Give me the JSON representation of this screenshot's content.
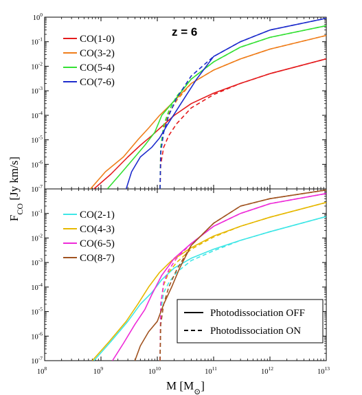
{
  "chart_data": [
    {
      "panel": "top",
      "type": "line",
      "annotation": "z = 6",
      "x_scale": "log",
      "y_scale": "log",
      "xlim": [
        100000000.0,
        10000000000000.0
      ],
      "ylim": [
        1e-07,
        1
      ],
      "grid": false,
      "legend_position": "top-left",
      "series": [
        {
          "name": "CO(1-0)",
          "color": "#e41a1c",
          "off": [
            [
              750000000.0,
              1e-07
            ],
            [
              1500000000.0,
              4e-07
            ],
            [
              3000000000.0,
              2e-06
            ],
            [
              5000000000.0,
              6e-06
            ],
            [
              8000000000.0,
              1.5e-05
            ],
            [
              12000000000.0,
              3.5e-05
            ],
            [
              20000000000.0,
              0.0001
            ],
            [
              40000000000.0,
              0.0003
            ],
            [
              100000000000.0,
              0.0008
            ],
            [
              300000000000.0,
              0.002
            ],
            [
              1000000000000.0,
              0.005
            ],
            [
              10000000000000.0,
              0.02
            ]
          ],
          "on": [
            [
              11200000000.0,
              1e-07
            ],
            [
              11500000000.0,
              1e-06
            ],
            [
              13000000000.0,
              5e-06
            ],
            [
              16000000000.0,
              1.5e-05
            ],
            [
              22000000000.0,
              4.5e-05
            ],
            [
              40000000000.0,
              0.0002
            ],
            [
              100000000000.0,
              0.0007
            ],
            [
              300000000000.0,
              0.002
            ],
            [
              1000000000000.0,
              0.005
            ],
            [
              10000000000000.0,
              0.02
            ]
          ]
        },
        {
          "name": "CO(3-2)",
          "color": "#ef7d1a",
          "off": [
            [
              650000000.0,
              1e-07
            ],
            [
              1200000000.0,
              5e-07
            ],
            [
              2500000000.0,
              2e-06
            ],
            [
              4500000000.0,
              1e-05
            ],
            [
              7000000000.0,
              3e-05
            ],
            [
              11000000000.0,
              0.0001
            ],
            [
              18000000000.0,
              0.0003
            ],
            [
              40000000000.0,
              0.002
            ],
            [
              100000000000.0,
              0.007
            ],
            [
              300000000000.0,
              0.02
            ],
            [
              1000000000000.0,
              0.05
            ],
            [
              10000000000000.0,
              0.18
            ]
          ],
          "on": [
            [
              11200000000.0,
              1e-07
            ],
            [
              11500000000.0,
              5e-06
            ],
            [
              13000000000.0,
              3e-05
            ],
            [
              16000000000.0,
              0.00012
            ],
            [
              22000000000.0,
              0.0004
            ],
            [
              40000000000.0,
              0.002
            ],
            [
              100000000000.0,
              0.007
            ],
            [
              300000000000.0,
              0.02
            ],
            [
              1000000000000.0,
              0.05
            ],
            [
              10000000000000.0,
              0.18
            ]
          ]
        },
        {
          "name": "CO(5-4)",
          "color": "#33e033",
          "off": [
            [
              1300000000.0,
              1e-07
            ],
            [
              2200000000.0,
              4e-07
            ],
            [
              4000000000.0,
              2e-06
            ],
            [
              6000000000.0,
              6e-06
            ],
            [
              9000000000.0,
              2e-05
            ],
            [
              12000000000.0,
              0.0001
            ],
            [
              20000000000.0,
              0.0004
            ],
            [
              40000000000.0,
              0.003
            ],
            [
              100000000000.0,
              0.015
            ],
            [
              300000000000.0,
              0.06
            ],
            [
              1000000000000.0,
              0.15
            ],
            [
              10000000000000.0,
              0.45
            ]
          ],
          "on": [
            [
              11200000000.0,
              1e-07
            ],
            [
              11500000000.0,
              5e-06
            ],
            [
              13000000000.0,
              4e-05
            ],
            [
              16000000000.0,
              0.00015
            ],
            [
              22000000000.0,
              0.0006
            ],
            [
              40000000000.0,
              0.003
            ],
            [
              100000000000.0,
              0.015
            ],
            [
              300000000000.0,
              0.06
            ],
            [
              1000000000000.0,
              0.15
            ],
            [
              10000000000000.0,
              0.45
            ]
          ]
        },
        {
          "name": "CO(7-6)",
          "color": "#1c2bcc",
          "off": [
            [
              2800000000.0,
              1e-07
            ],
            [
              3500000000.0,
              5e-07
            ],
            [
              5000000000.0,
              2e-06
            ],
            [
              8000000000.0,
              5e-06
            ],
            [
              11000000000.0,
              1.2e-05
            ],
            [
              15000000000.0,
              4e-05
            ],
            [
              25000000000.0,
              0.00025
            ],
            [
              50000000000.0,
              0.003
            ],
            [
              100000000000.0,
              0.025
            ],
            [
              300000000000.0,
              0.1
            ],
            [
              1000000000000.0,
              0.3
            ],
            [
              10000000000000.0,
              0.9
            ]
          ],
          "on": [
            [
              11200000000.0,
              1e-07
            ],
            [
              11500000000.0,
              3e-06
            ],
            [
              13000000000.0,
              2e-05
            ],
            [
              16000000000.0,
              0.0001
            ],
            [
              22000000000.0,
              0.0005
            ],
            [
              40000000000.0,
              0.004
            ],
            [
              100000000000.0,
              0.025
            ],
            [
              300000000000.0,
              0.1
            ],
            [
              1000000000000.0,
              0.3
            ],
            [
              10000000000000.0,
              0.9
            ]
          ]
        }
      ]
    },
    {
      "panel": "bottom",
      "type": "line",
      "x_scale": "log",
      "y_scale": "log",
      "xlim": [
        100000000.0,
        10000000000000.0
      ],
      "ylim": [
        1e-07,
        1
      ],
      "xlabel": "M [M⊙]",
      "xticklabels": [
        "10^8",
        "10^9",
        "10^10",
        "10^11",
        "10^12",
        "10^13"
      ],
      "grid": false,
      "legend_position": "top-left",
      "linestyle_legend": [
        {
          "label": "Photodissociation OFF",
          "style": "solid"
        },
        {
          "label": "Photodissociation ON",
          "style": "dashed"
        }
      ],
      "series": [
        {
          "name": "CO(2-1)",
          "color": "#3ee6e6",
          "off": [
            [
              750000000.0,
              1e-07
            ],
            [
              1500000000.0,
              6e-07
            ],
            [
              3000000000.0,
              4e-06
            ],
            [
              5000000000.0,
              2e-05
            ],
            [
              8000000000.0,
              6e-05
            ],
            [
              12000000000.0,
              0.0002
            ],
            [
              20000000000.0,
              0.0006
            ],
            [
              40000000000.0,
              0.0015
            ],
            [
              100000000000.0,
              0.0035
            ],
            [
              300000000000.0,
              0.008
            ],
            [
              1000000000000.0,
              0.018
            ],
            [
              10000000000000.0,
              0.075
            ]
          ],
          "on": [
            [
              11200000000.0,
              1e-07
            ],
            [
              11500000000.0,
              1e-05
            ],
            [
              13000000000.0,
              6e-05
            ],
            [
              16000000000.0,
              0.00015
            ],
            [
              22000000000.0,
              0.0004
            ],
            [
              40000000000.0,
              0.0012
            ],
            [
              100000000000.0,
              0.003
            ],
            [
              300000000000.0,
              0.008
            ],
            [
              1000000000000.0,
              0.018
            ],
            [
              10000000000000.0,
              0.075
            ]
          ]
        },
        {
          "name": "CO(4-3)",
          "color": "#e6b800",
          "off": [
            [
              700000000.0,
              1e-07
            ],
            [
              1400000000.0,
              6e-07
            ],
            [
              2800000000.0,
              4e-06
            ],
            [
              4500000000.0,
              2e-05
            ],
            [
              7000000000.0,
              0.0001
            ],
            [
              11000000000.0,
              0.0004
            ],
            [
              18000000000.0,
              0.0012
            ],
            [
              40000000000.0,
              0.004
            ],
            [
              100000000000.0,
              0.012
            ],
            [
              300000000000.0,
              0.03
            ],
            [
              1000000000000.0,
              0.07
            ],
            [
              10000000000000.0,
              0.28
            ]
          ],
          "on": [
            [
              11200000000.0,
              1e-07
            ],
            [
              11500000000.0,
              2e-05
            ],
            [
              13000000000.0,
              0.00012
            ],
            [
              16000000000.0,
              0.0004
            ],
            [
              22000000000.0,
              0.001
            ],
            [
              40000000000.0,
              0.0035
            ],
            [
              100000000000.0,
              0.011
            ],
            [
              300000000000.0,
              0.03
            ],
            [
              1000000000000.0,
              0.07
            ],
            [
              10000000000000.0,
              0.28
            ]
          ]
        },
        {
          "name": "CO(6-5)",
          "color": "#ee2ad8",
          "off": [
            [
              1600000000.0,
              1e-07
            ],
            [
              2500000000.0,
              5e-07
            ],
            [
              4000000000.0,
              3e-06
            ],
            [
              6000000000.0,
              1.2e-05
            ],
            [
              8000000000.0,
              5e-05
            ],
            [
              12000000000.0,
              0.0003
            ],
            [
              20000000000.0,
              0.0015
            ],
            [
              40000000000.0,
              0.006
            ],
            [
              100000000000.0,
              0.03
            ],
            [
              300000000000.0,
              0.1
            ],
            [
              1000000000000.0,
              0.25
            ],
            [
              10000000000000.0,
              0.65
            ]
          ],
          "on": [
            [
              11200000000.0,
              1e-07
            ],
            [
              11500000000.0,
              2e-05
            ],
            [
              13000000000.0,
              0.00015
            ],
            [
              16000000000.0,
              0.0005
            ],
            [
              22000000000.0,
              0.0015
            ],
            [
              40000000000.0,
              0.006
            ],
            [
              100000000000.0,
              0.03
            ],
            [
              300000000000.0,
              0.1
            ],
            [
              1000000000000.0,
              0.25
            ],
            [
              10000000000000.0,
              0.65
            ]
          ]
        },
        {
          "name": "CO(8-7)",
          "color": "#a0521f",
          "off": [
            [
              4000000000.0,
              1e-07
            ],
            [
              5000000000.0,
              4e-07
            ],
            [
              7000000000.0,
              1.5e-06
            ],
            [
              10000000000.0,
              4e-06
            ],
            [
              13000000000.0,
              2e-05
            ],
            [
              18000000000.0,
              0.0001
            ],
            [
              25000000000.0,
              0.0006
            ],
            [
              40000000000.0,
              0.005
            ],
            [
              100000000000.0,
              0.04
            ],
            [
              300000000000.0,
              0.2
            ],
            [
              1000000000000.0,
              0.4
            ],
            [
              10000000000000.0,
              0.9
            ]
          ],
          "on": [
            [
              11200000000.0,
              1e-07
            ],
            [
              11500000000.0,
              3e-06
            ],
            [
              13000000000.0,
              2e-05
            ],
            [
              16000000000.0,
              0.0001
            ],
            [
              22000000000.0,
              0.0005
            ],
            [
              40000000000.0,
              0.005
            ],
            [
              100000000000.0,
              0.04
            ],
            [
              300000000000.0,
              0.2
            ],
            [
              1000000000000.0,
              0.4
            ],
            [
              10000000000000.0,
              0.9
            ]
          ]
        }
      ]
    }
  ],
  "shared_ylabel": "F_CO [Jy km/s]",
  "ytick_exponents_top": [
    "0",
    "-1",
    "-2",
    "-3",
    "-4",
    "-5",
    "-6",
    "-7"
  ],
  "ytick_exponents_bottom": [
    "-1",
    "-2",
    "-3",
    "-4",
    "-5",
    "-6",
    "-7"
  ]
}
